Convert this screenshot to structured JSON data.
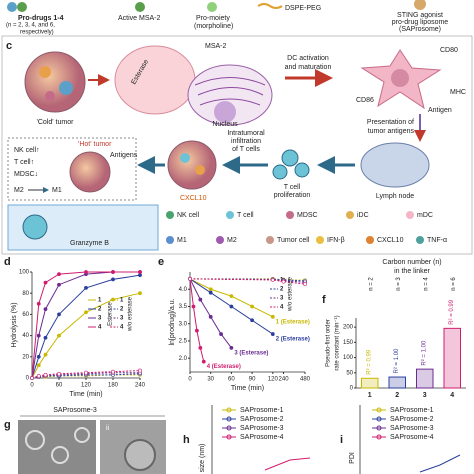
{
  "figure": {
    "top_legend": {
      "prodrugs": "Pro-drugs 1-4",
      "prodrugs_note": "(n = 2, 3, 4, and 6,",
      "prodrugs_note_2": "respectively)",
      "active": "Active MSA-2",
      "promoiety": "Pro-moiety",
      "promoiety_note": "(morpholine)",
      "peg": "DSPE-PEG",
      "liposome": "STING agonist",
      "liposome_2": "pro-drug liposome",
      "liposome_3": "(SAProsome)"
    },
    "panel_c": {
      "label": "c",
      "cold_tumor": "'Cold' tumor",
      "esterase": "Esterase",
      "msa2": "MSA-2",
      "nucleus": "Nucleus",
      "dc_1": "DC activation",
      "dc_2": "and maturation",
      "cd80": "CD80",
      "mhc": "MHC",
      "cd86": "CD86",
      "antigen": "Antigen",
      "presentation_1": "Presentation of",
      "presentation_2": "tumor antigens",
      "lymph": "Lymph node",
      "tcell_1": "T cell",
      "tcell_2": "proliferation",
      "infiltration_1": "Intratumoral",
      "infiltration_2": "infiltration",
      "infiltration_3": "of T cells",
      "hot_tumor": "'Hot' tumor",
      "antigens": "Antigens",
      "cxcl10": "CXCL10",
      "nk_up": "NK cell↑",
      "t_up": "T cell↑",
      "mdsc_down": "MDSC↓",
      "m2": "M2",
      "m1": "M1",
      "granzyme": "Granzyme B",
      "legend": [
        "NK cell",
        "T cell",
        "MDSC",
        "iDC",
        "mDC",
        "M1",
        "M2",
        "Tumor cell",
        "IFN-β",
        "CXCL10",
        "TNF-α"
      ]
    },
    "panel_g": {
      "label": "g",
      "title": "SAProsome-3",
      "inset": "ii"
    },
    "panel_h": {
      "label": "h",
      "y_label": "size (nm)",
      "legend": [
        "SAProsome-1",
        "SAProsome-2",
        "SAProsome-3",
        "SAProsome-4"
      ]
    },
    "panel_i": {
      "label": "i",
      "y_label": "PDI",
      "legend": [
        "SAProsome-1",
        "SAProsome-2",
        "SAProsome-3",
        "SAProsome-4"
      ]
    }
  },
  "chart_data": [
    {
      "type": "line",
      "label": "d",
      "x": [
        0,
        15,
        30,
        60,
        120,
        180,
        240
      ],
      "xlim": [
        0,
        240
      ],
      "xticks": [
        0,
        60,
        120,
        180,
        240
      ],
      "ylim": [
        0,
        100
      ],
      "yticks": [
        0,
        20,
        40,
        60,
        80,
        100
      ],
      "x_label": "Time (min)",
      "y_label": "Hydrolysis (%)",
      "legend_title": "Esterase",
      "legend_title_2": "w/o esterase",
      "series": [
        {
          "name": "1",
          "color": "#c9b800",
          "values": [
            0,
            12,
            22,
            40,
            62,
            74,
            80
          ]
        },
        {
          "name": "2",
          "color": "#2b3f9e",
          "values": [
            0,
            20,
            38,
            60,
            85,
            93,
            97
          ]
        },
        {
          "name": "3",
          "color": "#6a2c91",
          "values": [
            0,
            40,
            65,
            88,
            98,
            100,
            100
          ]
        },
        {
          "name": "4",
          "color": "#d01c6f",
          "values": [
            0,
            70,
            90,
            98,
            100,
            100,
            100
          ]
        },
        {
          "name": "1",
          "color": "#c9b800",
          "dash": true,
          "values": [
            0,
            1,
            1,
            2,
            2,
            3,
            3
          ]
        },
        {
          "name": "2",
          "color": "#2b3f9e",
          "dash": true,
          "values": [
            0,
            1,
            2,
            2,
            3,
            3,
            4
          ]
        },
        {
          "name": "3",
          "color": "#6a2c91",
          "dash": true,
          "values": [
            0,
            1,
            2,
            3,
            4,
            5,
            5
          ]
        },
        {
          "name": "4",
          "color": "#d01c6f",
          "dash": true,
          "values": [
            0,
            2,
            3,
            4,
            5,
            6,
            7
          ]
        }
      ]
    },
    {
      "type": "line",
      "label": "e",
      "xlim": [
        0,
        480
      ],
      "axis_break": 120,
      "xticks": [
        0,
        30,
        60,
        90,
        120,
        240,
        480
      ],
      "ylim": [
        1.6,
        4.5
      ],
      "yticks": [
        {
          "value": 4,
          "label": "4.0"
        },
        3.5,
        {
          "value": 3,
          "label": "3.0"
        },
        2.5,
        {
          "value": 2,
          "label": "2.0"
        }
      ],
      "x_label": "Time (min)",
      "y_label": "ln[prodrug]/a.u.",
      "legend_title": "w/o esterase",
      "series": [
        {
          "name": "1 (Esterase)",
          "color": "#c9b800",
          "x": [
            0,
            30,
            60,
            90,
            120
          ],
          "values": [
            4.3,
            4.0,
            3.8,
            3.5,
            3.2
          ]
        },
        {
          "name": "2 (Esterase)",
          "color": "#2b3f9e",
          "x": [
            0,
            30,
            60,
            90,
            120
          ],
          "values": [
            4.3,
            3.9,
            3.5,
            3.1,
            2.7
          ]
        },
        {
          "name": "3 (Esterase)",
          "color": "#6a2c91",
          "x": [
            0,
            15,
            30,
            45,
            60
          ],
          "values": [
            4.3,
            3.7,
            3.2,
            2.7,
            2.3
          ]
        },
        {
          "name": "4 (Esterase)",
          "color": "#d01c6f",
          "x": [
            0,
            5,
            10,
            15,
            20
          ],
          "values": [
            4.3,
            3.5,
            2.8,
            2.3,
            1.9
          ]
        },
        {
          "name": "1",
          "color": "#c9b800",
          "dash": true,
          "x": [
            0,
            120,
            240,
            480
          ],
          "values": [
            4.3,
            4.3,
            4.28,
            4.26
          ]
        },
        {
          "name": "2",
          "color": "#2b3f9e",
          "dash": true,
          "x": [
            0,
            120,
            240,
            480
          ],
          "values": [
            4.3,
            4.29,
            4.27,
            4.24
          ]
        },
        {
          "name": "3",
          "color": "#6a2c91",
          "dash": true,
          "x": [
            0,
            120,
            240,
            480
          ],
          "values": [
            4.3,
            4.28,
            4.25,
            4.2
          ]
        },
        {
          "name": "4",
          "color": "#d01c6f",
          "dash": true,
          "x": [
            0,
            120,
            240,
            480
          ],
          "values": [
            4.3,
            4.27,
            4.22,
            4.15
          ]
        }
      ]
    },
    {
      "type": "bar",
      "label": "f",
      "title": "Carbon number (n)",
      "title_2": "in the linker",
      "y_label": "Pseudo-first order",
      "y_label_2": "rate constant (min⁻¹)",
      "categories": [
        "1",
        "2",
        "3",
        "4"
      ],
      "values": [
        32,
        36,
        62,
        196
      ],
      "colors": [
        "#c9b800",
        "#2b3f9e",
        "#6a2c91",
        "#d01c6f"
      ],
      "top_labels": [
        "n = 2",
        "n = 3",
        "n = 4",
        "n = 6"
      ],
      "r2_labels": [
        "R² = 0.99",
        "R² = 1.00",
        "R² = 1.00",
        "R² = 0.99"
      ],
      "ylim": [
        0,
        230
      ],
      "yticks": [
        0,
        50,
        100,
        150,
        200
      ]
    }
  ]
}
